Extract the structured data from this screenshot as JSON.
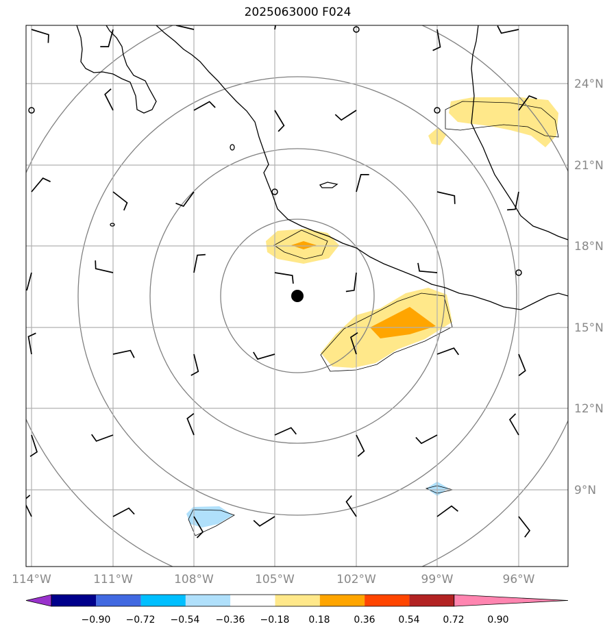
{
  "title": "2025063000 F024",
  "map": {
    "lon_range": [
      -114,
      -94
    ],
    "lat_range": [
      6,
      26
    ],
    "lon_ticks": [
      {
        "value": -114,
        "label": "114°W"
      },
      {
        "value": -111,
        "label": "111°W"
      },
      {
        "value": -108,
        "label": "108°W"
      },
      {
        "value": -105,
        "label": "105°W"
      },
      {
        "value": -102,
        "label": "102°W"
      },
      {
        "value": -99,
        "label": "99°W"
      },
      {
        "value": -96,
        "label": "96°W"
      }
    ],
    "lat_ticks": [
      {
        "value": 24,
        "label": "24°N"
      },
      {
        "value": 21,
        "label": "21°N"
      },
      {
        "value": 18,
        "label": "18°N"
      },
      {
        "value": 15,
        "label": "15°N"
      },
      {
        "value": 12,
        "label": "12°N"
      },
      {
        "value": 9,
        "label": "9°N"
      }
    ],
    "storm_center": {
      "lon": -104.2,
      "lat": 16.1
    },
    "range_rings": "concentric distance rings around storm center",
    "colors": {
      "coast": "#000000",
      "grid": "#b0b0b0",
      "rings": "#808080"
    }
  },
  "colorbar": {
    "bounds": [
      "−0.90",
      "−0.72",
      "−0.54",
      "−0.36",
      "−0.18",
      "0.18",
      "0.36",
      "0.54",
      "0.72",
      "0.90"
    ],
    "colors": [
      "#9932cc",
      "#00008b",
      "#4169e1",
      "#00bfff",
      "#b0e0fb",
      "#ffffff",
      "#ffe88a",
      "#ffa500",
      "#ff4500",
      "#b22222",
      "#ff85b0"
    ]
  }
}
